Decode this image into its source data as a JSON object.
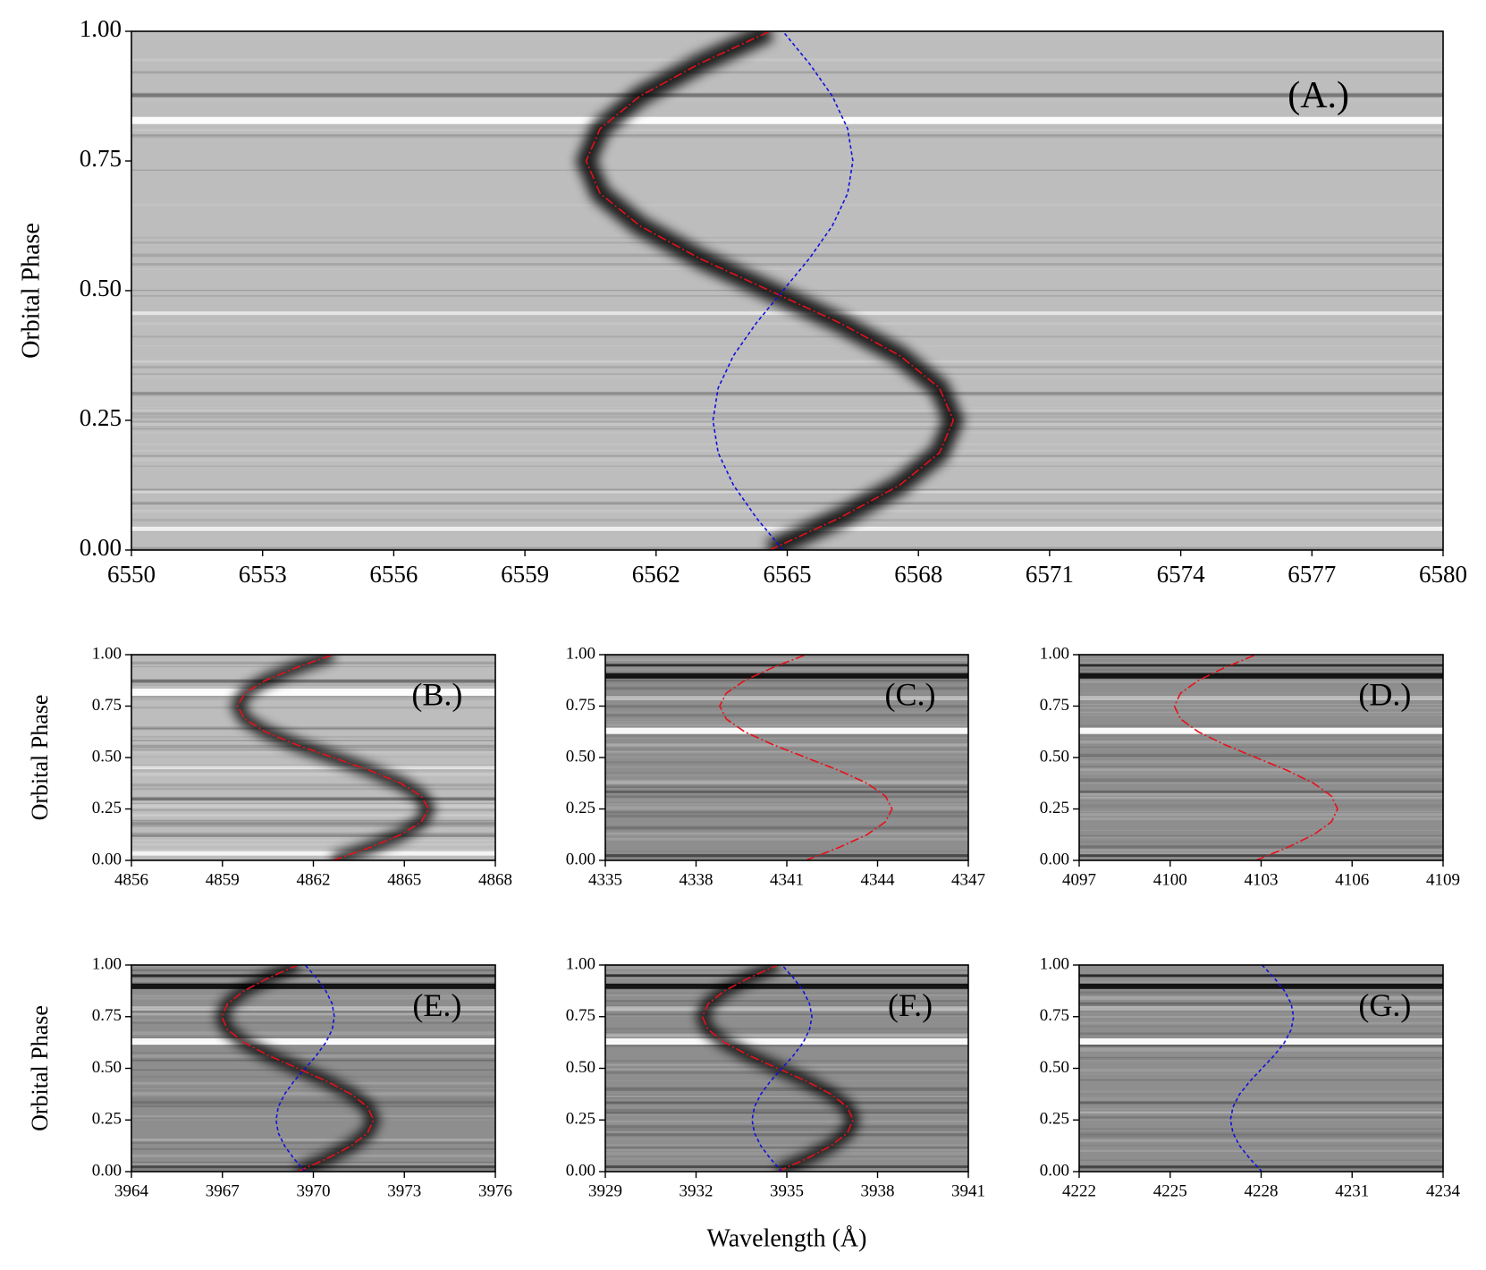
{
  "chart_data": [
    {
      "type": "line",
      "orientation": "horizontal",
      "label": "(A.)",
      "ylabel": "Orbital Phase",
      "xlim": [
        6550,
        6580
      ],
      "ylim": [
        0,
        1
      ],
      "xticks": [
        6550,
        6553,
        6556,
        6559,
        6562,
        6565,
        6568,
        6571,
        6574,
        6577,
        6580
      ],
      "yticks": [
        {
          "value": 0,
          "label": "0.00"
        },
        {
          "value": 0.25,
          "label": "0.25"
        },
        {
          "value": 0.5,
          "label": "0.50"
        },
        {
          "value": 0.75,
          "label": "0.75"
        },
        {
          "value": 1,
          "label": "1.00"
        }
      ],
      "x": [
        0,
        0.0625,
        0.125,
        0.1875,
        0.25,
        0.3125,
        0.375,
        0.4375,
        0.5,
        0.5625,
        0.625,
        0.6875,
        0.75,
        0.8125,
        0.875,
        0.9375,
        1
      ],
      "series": [
        {
          "color": "#e8101a",
          "style": "dashdot",
          "trail": true,
          "values": [
            6564.6,
            6566.21,
            6567.57,
            6568.48,
            6568.8,
            6568.48,
            6567.57,
            6566.21,
            6564.6,
            6562.99,
            6561.63,
            6560.72,
            6560.4,
            6560.72,
            6561.63,
            6562.99,
            6564.6
          ]
        },
        {
          "color": "#1010e0",
          "style": "dashed",
          "trail": false,
          "values": [
            6564.9,
            6564.29,
            6563.77,
            6563.42,
            6563.3,
            6563.42,
            6563.77,
            6564.29,
            6564.9,
            6565.51,
            6566.03,
            6566.38,
            6566.5,
            6566.38,
            6566.03,
            6565.51,
            6564.9
          ]
        }
      ]
    },
    {
      "type": "line",
      "orientation": "horizontal",
      "label": "(B.)",
      "ylabel": "Orbital Phase",
      "xlim": [
        4856,
        4868
      ],
      "ylim": [
        0,
        1
      ],
      "xticks": [
        4856,
        4859,
        4862,
        4865,
        4868
      ],
      "yticks": [
        {
          "value": 0,
          "label": "0.00"
        },
        {
          "value": 0.25,
          "label": "0.25"
        },
        {
          "value": 0.5,
          "label": "0.50"
        },
        {
          "value": 0.75,
          "label": "0.75"
        },
        {
          "value": 1,
          "label": "1.00"
        }
      ],
      "x": [
        0,
        0.0625,
        0.125,
        0.1875,
        0.25,
        0.3125,
        0.375,
        0.4375,
        0.5,
        0.5625,
        0.625,
        0.6875,
        0.75,
        0.8125,
        0.875,
        0.9375,
        1
      ],
      "series": [
        {
          "color": "#e8101a",
          "style": "dashdot",
          "trail": true,
          "values": [
            4862.65,
            4863.86,
            4864.88,
            4865.56,
            4865.8,
            4865.56,
            4864.88,
            4863.86,
            4862.65,
            4861.44,
            4860.42,
            4859.74,
            4859.5,
            4859.74,
            4860.42,
            4861.44,
            4862.65
          ]
        }
      ]
    },
    {
      "type": "line",
      "orientation": "horizontal",
      "label": "(C.)",
      "xlim": [
        4335,
        4347
      ],
      "ylim": [
        0,
        1
      ],
      "xticks": [
        4335,
        4338,
        4341,
        4344,
        4347
      ],
      "yticks": [
        {
          "value": 0,
          "label": "0.00"
        },
        {
          "value": 0.25,
          "label": "0.25"
        },
        {
          "value": 0.5,
          "label": "0.50"
        },
        {
          "value": 0.75,
          "label": "0.75"
        },
        {
          "value": 1,
          "label": "1.00"
        }
      ],
      "x": [
        0,
        0.0625,
        0.125,
        0.1875,
        0.25,
        0.3125,
        0.375,
        0.4375,
        0.5,
        0.5625,
        0.625,
        0.6875,
        0.75,
        0.8125,
        0.875,
        0.9375,
        1
      ],
      "series": [
        {
          "color": "#e8101a",
          "style": "dashdot",
          "trail": false,
          "values": [
            4341.63,
            4342.72,
            4343.65,
            4344.26,
            4344.48,
            4344.26,
            4343.65,
            4342.72,
            4341.63,
            4340.54,
            4339.61,
            4339.0,
            4338.78,
            4339.0,
            4339.61,
            4340.54,
            4341.63
          ]
        }
      ]
    },
    {
      "type": "line",
      "orientation": "horizontal",
      "label": "(D.)",
      "xlim": [
        4097,
        4109
      ],
      "ylim": [
        0,
        1
      ],
      "xticks": [
        4097,
        4100,
        4103,
        4106,
        4109
      ],
      "yticks": [
        {
          "value": 0,
          "label": "0.00"
        },
        {
          "value": 0.25,
          "label": "0.25"
        },
        {
          "value": 0.5,
          "label": "0.50"
        },
        {
          "value": 0.75,
          "label": "0.75"
        },
        {
          "value": 1,
          "label": "1.00"
        }
      ],
      "x": [
        0,
        0.0625,
        0.125,
        0.1875,
        0.25,
        0.3125,
        0.375,
        0.4375,
        0.5,
        0.5625,
        0.625,
        0.6875,
        0.75,
        0.8125,
        0.875,
        0.9375,
        1
      ],
      "series": [
        {
          "color": "#e8101a",
          "style": "dashdot",
          "trail": false,
          "values": [
            4102.83,
            4103.86,
            4104.73,
            4105.32,
            4105.52,
            4105.32,
            4104.73,
            4103.86,
            4102.83,
            4101.8,
            4100.93,
            4100.34,
            4100.14,
            4100.34,
            4100.93,
            4101.8,
            4102.83
          ]
        }
      ]
    },
    {
      "type": "line",
      "orientation": "horizontal",
      "label": "(E.)",
      "ylabel": "Orbital Phase",
      "xlim": [
        3964,
        3976
      ],
      "ylim": [
        0,
        1
      ],
      "xticks": [
        3964,
        3967,
        3970,
        3973,
        3976
      ],
      "yticks": [
        {
          "value": 0,
          "label": "0.00"
        },
        {
          "value": 0.25,
          "label": "0.25"
        },
        {
          "value": 0.5,
          "label": "0.50"
        },
        {
          "value": 0.75,
          "label": "0.75"
        },
        {
          "value": 1,
          "label": "1.00"
        }
      ],
      "x": [
        0,
        0.0625,
        0.125,
        0.1875,
        0.25,
        0.3125,
        0.375,
        0.4375,
        0.5,
        0.5625,
        0.625,
        0.6875,
        0.75,
        0.8125,
        0.875,
        0.9375,
        1
      ],
      "series": [
        {
          "color": "#e8101a",
          "style": "dashdot",
          "trail": true,
          "values": [
            3969.48,
            3970.44,
            3971.25,
            3971.79,
            3971.98,
            3971.79,
            3971.25,
            3970.44,
            3969.48,
            3968.52,
            3967.71,
            3967.17,
            3966.98,
            3967.17,
            3967.71,
            3968.52,
            3969.48
          ]
        },
        {
          "color": "#1010e0",
          "style": "dashed",
          "trail": false,
          "values": [
            3969.73,
            3969.36,
            3969.05,
            3968.84,
            3968.77,
            3968.84,
            3969.05,
            3969.36,
            3969.73,
            3970.1,
            3970.41,
            3970.62,
            3970.69,
            3970.62,
            3970.41,
            3970.1,
            3969.73
          ]
        }
      ]
    },
    {
      "type": "line",
      "orientation": "horizontal",
      "label": "(F.)",
      "xlabel": "Wavelength (Å)",
      "xlim": [
        3929,
        3941
      ],
      "ylim": [
        0,
        1
      ],
      "xticks": [
        3929,
        3932,
        3935,
        3938,
        3941
      ],
      "yticks": [
        {
          "value": 0,
          "label": "0.00"
        },
        {
          "value": 0.25,
          "label": "0.25"
        },
        {
          "value": 0.5,
          "label": "0.50"
        },
        {
          "value": 0.75,
          "label": "0.75"
        },
        {
          "value": 1,
          "label": "1.00"
        }
      ],
      "x": [
        0,
        0.0625,
        0.125,
        0.1875,
        0.25,
        0.3125,
        0.375,
        0.4375,
        0.5,
        0.5625,
        0.625,
        0.6875,
        0.75,
        0.8125,
        0.875,
        0.9375,
        1
      ],
      "series": [
        {
          "color": "#e8101a",
          "style": "dashdot",
          "trail": true,
          "values": [
            3934.7,
            3935.65,
            3936.46,
            3937.0,
            3937.19,
            3937.0,
            3936.46,
            3935.65,
            3934.7,
            3933.75,
            3932.94,
            3932.4,
            3932.21,
            3932.4,
            3932.94,
            3933.75,
            3934.7
          ]
        },
        {
          "color": "#1010e0",
          "style": "dashed",
          "trail": false,
          "values": [
            3934.84,
            3934.46,
            3934.14,
            3933.93,
            3933.85,
            3933.93,
            3934.14,
            3934.46,
            3934.84,
            3935.22,
            3935.54,
            3935.75,
            3935.83,
            3935.75,
            3935.54,
            3935.22,
            3934.84
          ]
        }
      ]
    },
    {
      "type": "line",
      "orientation": "horizontal",
      "label": "(G.)",
      "xlim": [
        4222,
        4234
      ],
      "ylim": [
        0,
        1
      ],
      "xticks": [
        4222,
        4225,
        4228,
        4231,
        4234
      ],
      "yticks": [
        {
          "value": 0,
          "label": "0.00"
        },
        {
          "value": 0.25,
          "label": "0.25"
        },
        {
          "value": 0.5,
          "label": "0.50"
        },
        {
          "value": 0.75,
          "label": "0.75"
        },
        {
          "value": 1,
          "label": "1.00"
        }
      ],
      "x": [
        0,
        0.0625,
        0.125,
        0.1875,
        0.25,
        0.3125,
        0.375,
        0.4375,
        0.5,
        0.5625,
        0.625,
        0.6875,
        0.75,
        0.8125,
        0.875,
        0.9375,
        1
      ],
      "series": [
        {
          "color": "#1010e0",
          "style": "dashed",
          "trail": false,
          "values": [
            4228.03,
            4227.63,
            4227.29,
            4227.07,
            4226.99,
            4227.07,
            4227.29,
            4227.63,
            4228.03,
            4228.43,
            4228.77,
            4228.99,
            4229.07,
            4228.99,
            4228.77,
            4228.43,
            4228.03
          ]
        }
      ]
    }
  ]
}
